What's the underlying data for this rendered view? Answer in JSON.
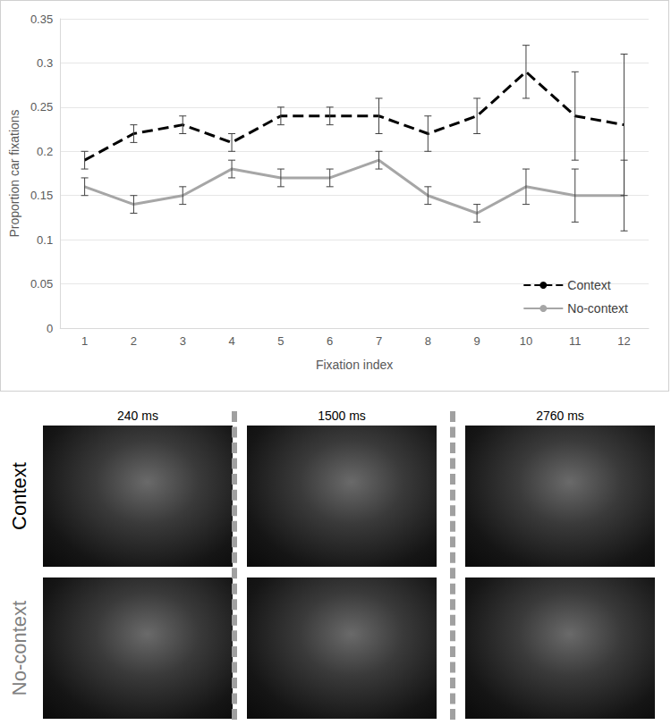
{
  "chart_data": {
    "type": "line",
    "x_label": "Fixation index",
    "y_label": "Proportion car fixations",
    "categories": [
      1,
      2,
      3,
      4,
      5,
      6,
      7,
      8,
      9,
      10,
      11,
      12
    ],
    "ylim": [
      0,
      0.35
    ],
    "yticks": [
      0,
      0.05,
      0.1,
      0.15,
      0.2,
      0.25,
      0.3,
      0.35
    ],
    "grid": true,
    "legend": "lower right",
    "series": [
      {
        "name": "Context",
        "color": "#000000",
        "line_style": "dashed",
        "values": [
          0.19,
          0.22,
          0.23,
          0.21,
          0.24,
          0.24,
          0.24,
          0.22,
          0.24,
          0.29,
          0.24,
          0.23
        ],
        "errors": [
          0.01,
          0.01,
          0.01,
          0.01,
          0.01,
          0.01,
          0.02,
          0.02,
          0.02,
          0.03,
          0.05,
          0.08
        ]
      },
      {
        "name": "No-context",
        "color": "#a6a6a6",
        "line_style": "solid",
        "values": [
          0.16,
          0.14,
          0.15,
          0.18,
          0.17,
          0.17,
          0.19,
          0.15,
          0.13,
          0.16,
          0.15,
          0.15
        ],
        "errors": [
          0.01,
          0.01,
          0.01,
          0.01,
          0.01,
          0.01,
          0.01,
          0.01,
          0.01,
          0.02,
          0.03,
          0.04
        ]
      }
    ]
  },
  "panels": {
    "columns": [
      "240 ms",
      "1500 ms",
      "2760 ms"
    ],
    "rows": [
      "Context",
      "No-context"
    ]
  }
}
